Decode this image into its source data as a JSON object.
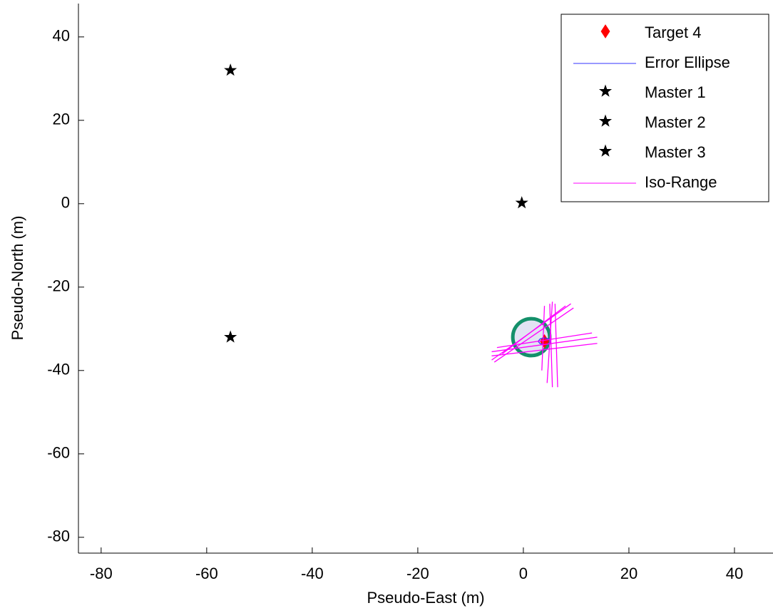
{
  "chart_data": {
    "type": "scatter",
    "xlabel": "Pseudo-East (m)",
    "ylabel": "Pseudo-North (m)",
    "xlim": [
      -84.3,
      47.3
    ],
    "ylim": [
      -83.8,
      48
    ],
    "xticks": [
      -80,
      -60,
      -40,
      -20,
      0,
      20,
      40
    ],
    "yticks": [
      -80,
      -60,
      -40,
      -20,
      0,
      20,
      40
    ],
    "legend": "upper right",
    "circle": {
      "x": 1.5,
      "y": -32,
      "r": 3.5,
      "color": "#14906a",
      "fill": "#e2e3f3"
    },
    "series": [
      {
        "name": "Target 4",
        "kind": "marker",
        "marker": "diamond",
        "color": "#ff0000",
        "x": [
          4
        ],
        "y": [
          -33
        ]
      },
      {
        "name": "Error Ellipse",
        "kind": "line",
        "color": "#3333ff",
        "x": [
          5.2,
          4.8,
          4,
          3.2,
          2.8,
          3.2,
          4,
          4.8,
          5.2
        ],
        "y": [
          -33,
          -32.4,
          -32.2,
          -32.4,
          -33,
          -33.6,
          -33.8,
          -33.6,
          -33
        ]
      },
      {
        "name": "Master 1",
        "kind": "marker",
        "marker": "star",
        "color": "#000000",
        "x": [
          -55.5
        ],
        "y": [
          32
        ]
      },
      {
        "name": "Master 2",
        "kind": "marker",
        "marker": "star",
        "color": "#000000",
        "x": [
          -55.5
        ],
        "y": [
          -32
        ]
      },
      {
        "name": "Master 3",
        "kind": "marker",
        "marker": "star",
        "color": "#000000",
        "x": [
          -0.3
        ],
        "y": [
          0.2
        ]
      },
      {
        "name": "Iso-Range",
        "kind": "line",
        "color": "#ff00ff",
        "x": [
          5.5,
          4.5,
          null,
          5,
          5.5,
          null,
          4,
          3.5,
          null,
          6,
          6.5,
          null,
          -6,
          14,
          null,
          -6,
          14,
          null,
          -5,
          13,
          null,
          -6,
          9,
          null,
          -5.5,
          9.5,
          null,
          -4,
          8
        ],
        "y": [
          -23.5,
          -43,
          null,
          -24,
          -44,
          null,
          -24.5,
          -40,
          null,
          -24,
          -44,
          null,
          -35.5,
          -32,
          null,
          -36.5,
          -33.5,
          null,
          -34.5,
          -31,
          null,
          -37.5,
          -24,
          null,
          -38,
          -25,
          null,
          -36,
          -24.5
        ]
      }
    ]
  }
}
